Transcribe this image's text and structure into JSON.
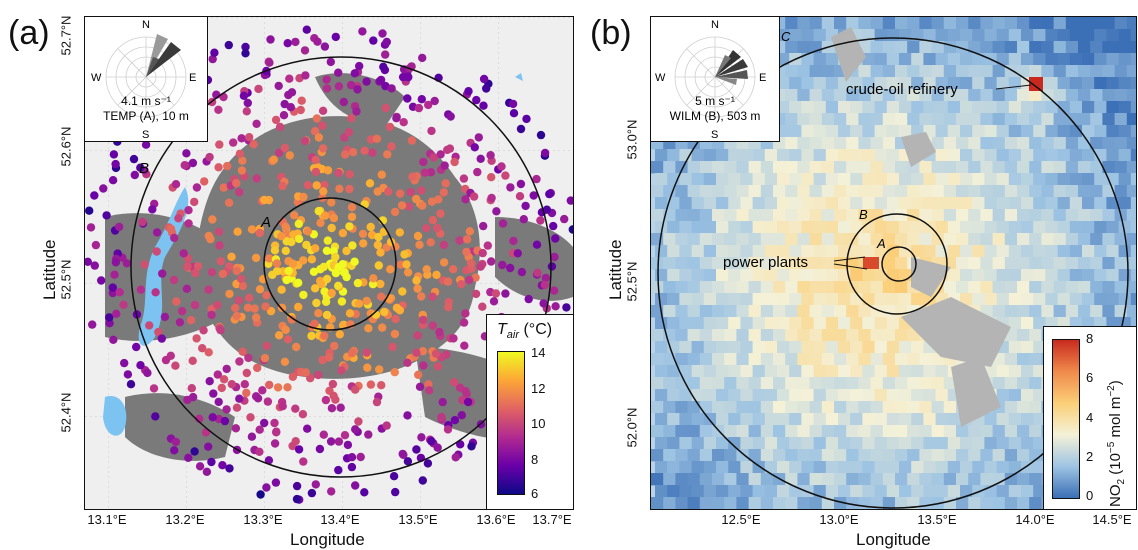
{
  "panel_a": {
    "label": "(a)",
    "xlabel": "Longitude",
    "ylabel": "Latitude",
    "x_ticks": [
      "13.1°E",
      "13.2°E",
      "13.3°E",
      "13.4°E",
      "13.5°E",
      "13.6°E",
      "13.7°E"
    ],
    "y_ticks": [
      "52.4°N",
      "52.5°N",
      "52.6°N",
      "52.7°N"
    ],
    "circle_labels": {
      "A": "A",
      "B": "B"
    },
    "wind_rose": {
      "north": "N",
      "east": "E",
      "south": "S",
      "west": "W",
      "speed": "4.1 m s⁻¹",
      "station": "TEMP (A), 10 m"
    },
    "colorbar": {
      "title": "T_air (°C)",
      "title_main": "T",
      "title_sub": "air",
      "title_unit": " (°C)",
      "ticks": [
        "14",
        "12",
        "10",
        "8",
        "6"
      ],
      "range": [
        6,
        14
      ],
      "colors": [
        "#0d0887",
        "#6a00a8",
        "#b12a90",
        "#e16462",
        "#fca636",
        "#f0f921"
      ]
    },
    "colors": {
      "background": "#efefef",
      "urban": "#7a7a7a",
      "water": "#7cc3f2"
    }
  },
  "panel_b": {
    "label": "(b)",
    "xlabel": "Longitude",
    "ylabel": "Latitude",
    "x_ticks": [
      "12.5°E",
      "13.0°E",
      "13.5°E",
      "14.0°E",
      "14.5°E"
    ],
    "y_ticks": [
      "52.0°N",
      "52.5°N",
      "53.0°N"
    ],
    "circle_labels": {
      "A": "A",
      "B": "B",
      "C": "C"
    },
    "annotations": {
      "refinery": "crude-oil refinery",
      "power_plants": "power plants"
    },
    "wind_rose": {
      "north": "N",
      "east": "E",
      "south": "S",
      "west": "W",
      "speed": "5 m s⁻¹",
      "station": "WILM (B), 503 m"
    },
    "colorbar": {
      "title": "NO2 (10^-5 mol m^-2)",
      "ticks": [
        "8",
        "6",
        "4",
        "2",
        "0"
      ],
      "range": [
        0,
        8
      ],
      "colors": [
        "#3b6fb6",
        "#9ec4e3",
        "#f4f1d8",
        "#fbcf78",
        "#f08a4b",
        "#c92a1f"
      ]
    }
  }
}
